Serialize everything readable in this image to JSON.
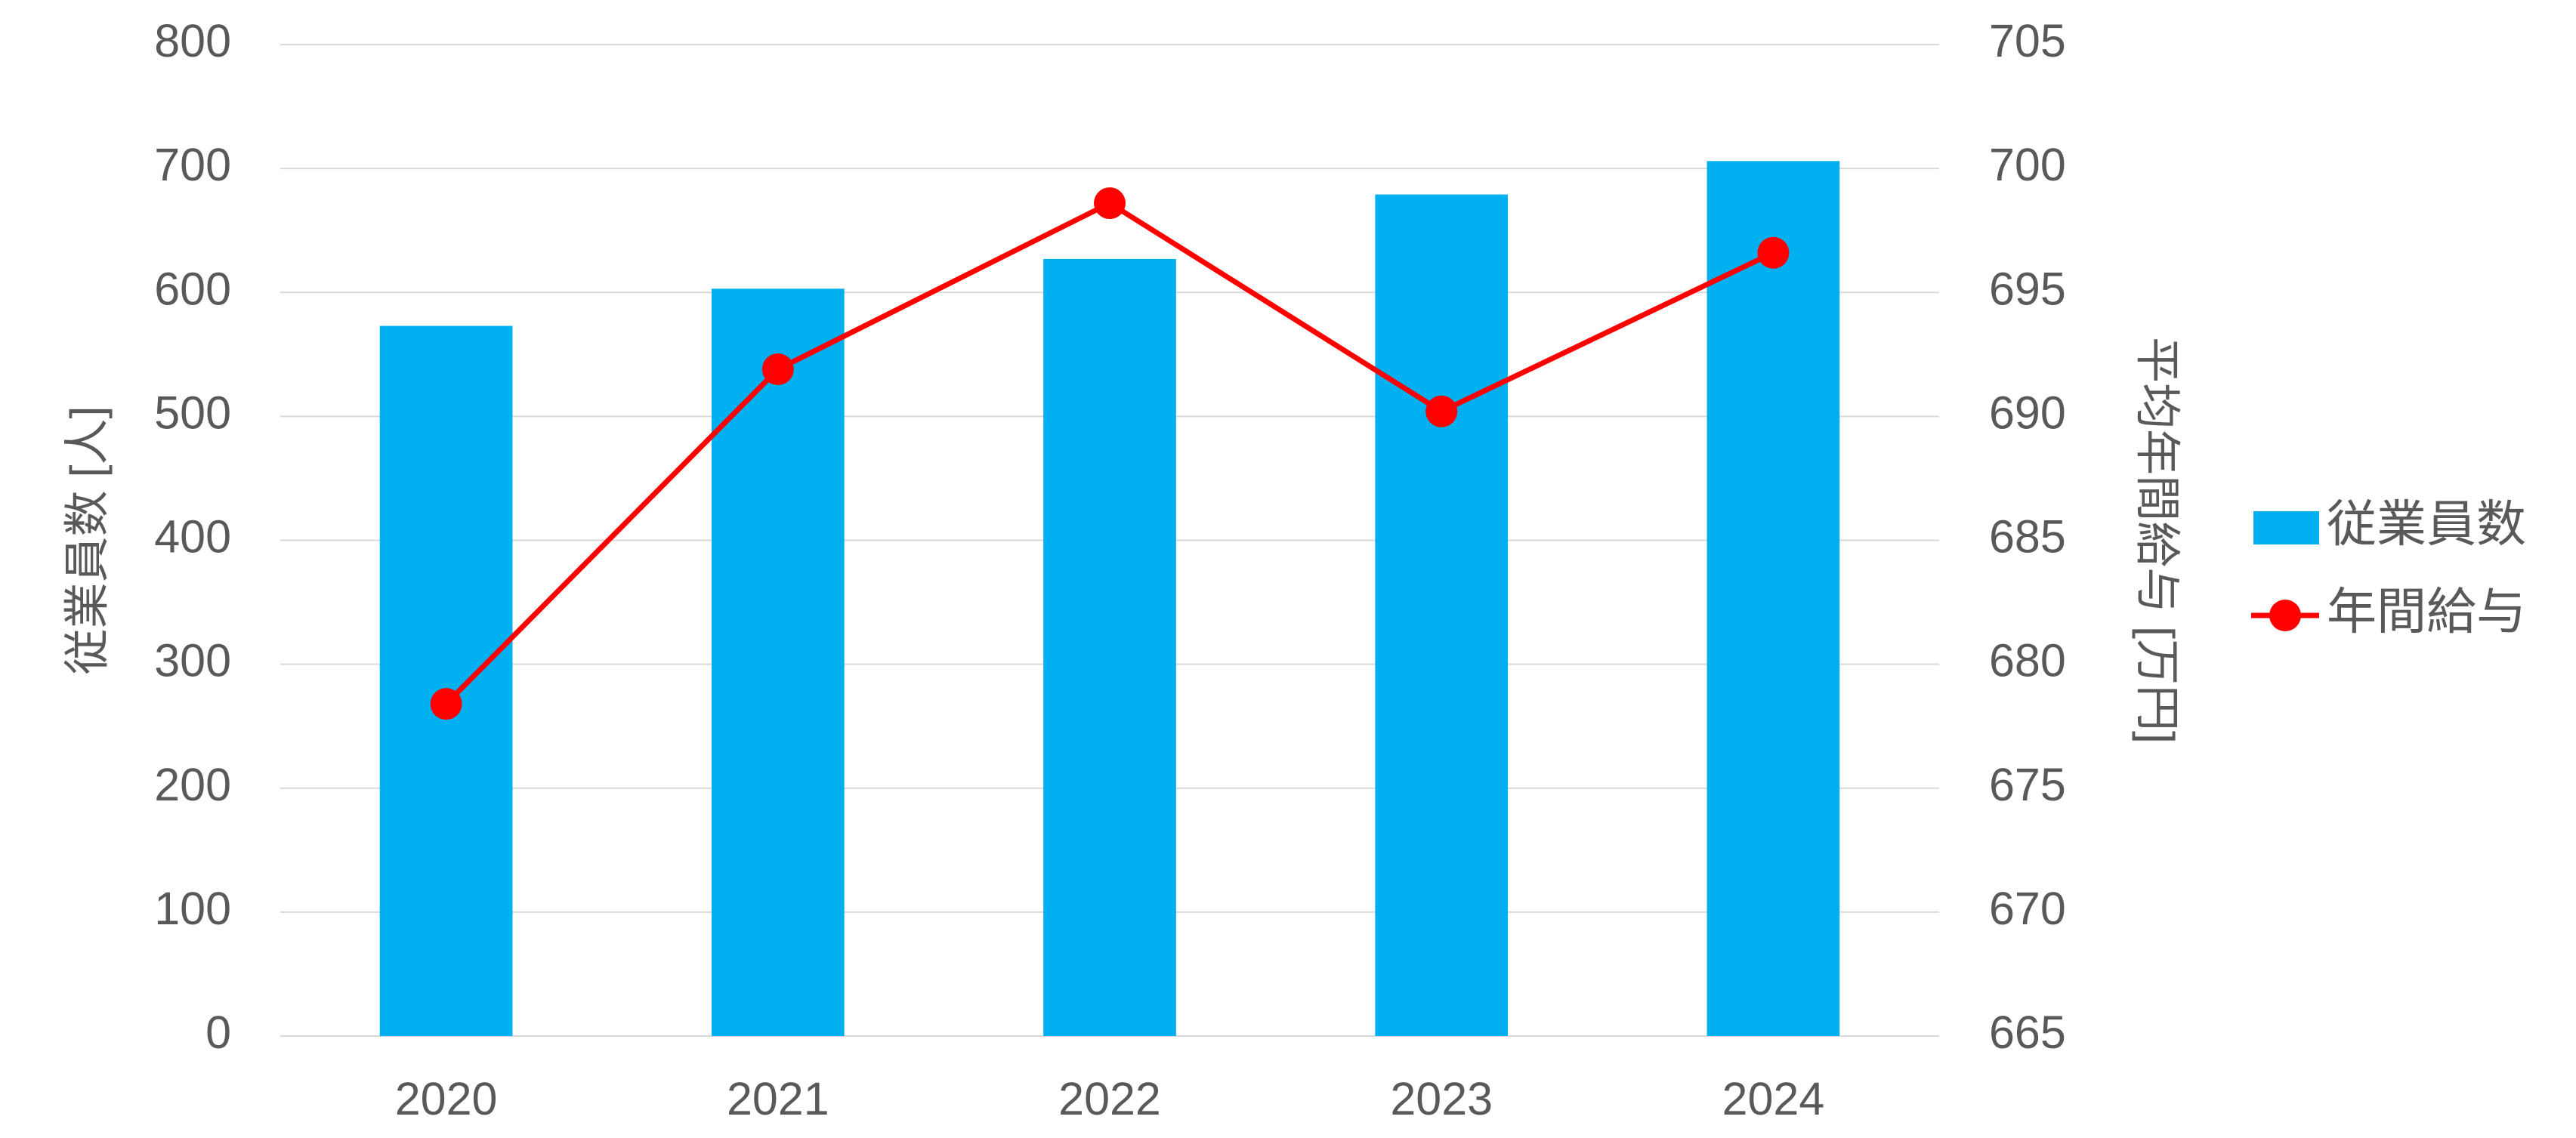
{
  "chart_data": {
    "type": "bar",
    "categories": [
      "2020",
      "2021",
      "2022",
      "2023",
      "2024"
    ],
    "series": [
      {
        "name": "従業員数",
        "type": "bar",
        "color": "#00b0f0",
        "values": [
          573,
          603,
          627,
          679,
          706
        ]
      },
      {
        "name": "年間給与",
        "type": "line",
        "axis": "y2",
        "color": "#ff0000",
        "values": [
          678.4,
          691.9,
          698.6,
          690.2,
          696.6
        ]
      }
    ],
    "y_label": "従業員数 [人]",
    "y2_label": "平均年間給与 [万円]",
    "ylim": [
      0,
      800
    ],
    "yticks": [
      0,
      100,
      200,
      300,
      400,
      500,
      600,
      700,
      800
    ],
    "y2lim": [
      665,
      705
    ],
    "y2ticks": [
      665,
      670,
      675,
      680,
      685,
      690,
      695,
      700,
      705
    ],
    "grid": true,
    "legend": "right"
  }
}
